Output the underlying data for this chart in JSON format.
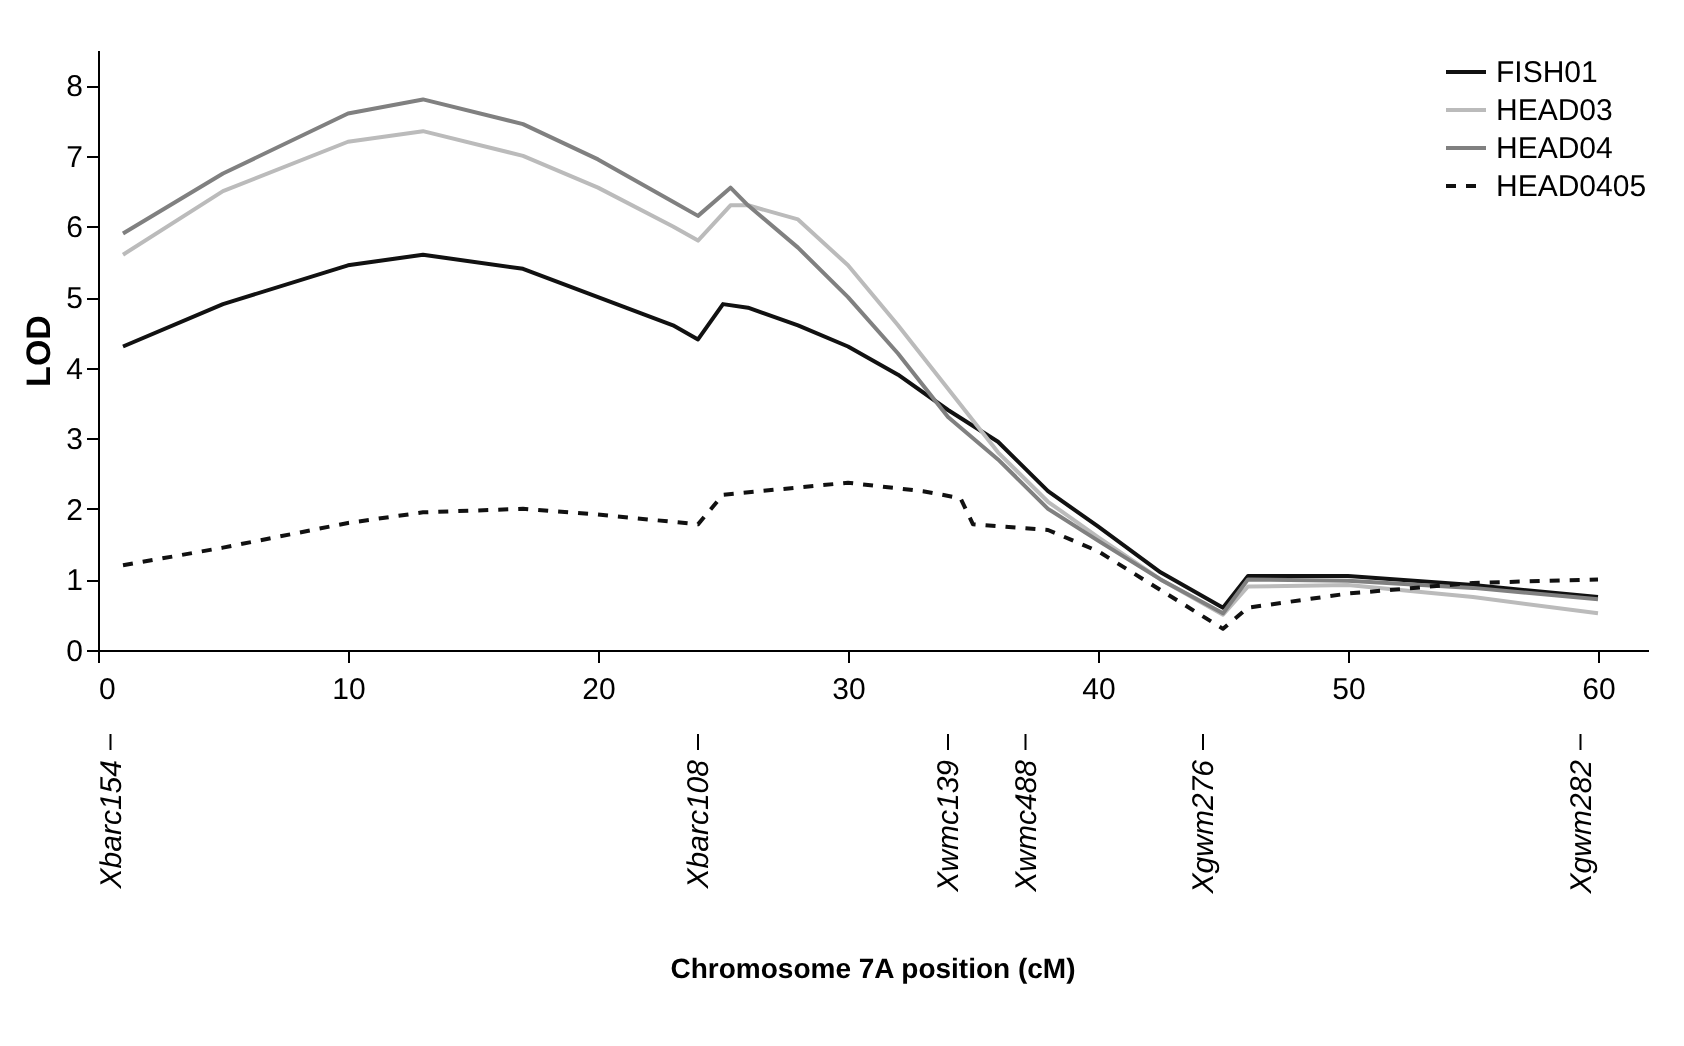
{
  "chart_data": {
    "type": "line",
    "annotations": [
      "Chromosome 7A position (cM)"
    ],
    "ylabel": "LOD",
    "xlim": [
      0,
      62
    ],
    "xticks": [
      0,
      10,
      20,
      30,
      40,
      50,
      60
    ],
    "ylim": [
      0,
      8.5
    ],
    "yticks": [
      0,
      1,
      2,
      3,
      4,
      5,
      6,
      7,
      8
    ],
    "grid": false,
    "legend": "top right",
    "marker": "none",
    "series": [
      {
        "name": "FISH01",
        "color": "#111111",
        "line_style": "solid",
        "x": [
          1,
          5,
          10,
          13,
          17,
          20,
          23,
          24,
          25,
          26,
          28,
          30,
          32,
          34,
          36,
          38,
          40,
          42.5,
          45,
          46,
          50,
          55,
          60
        ],
        "values": [
          4.3,
          4.9,
          5.45,
          5.6,
          5.4,
          5.0,
          4.6,
          4.4,
          4.9,
          4.85,
          4.6,
          4.3,
          3.9,
          3.4,
          2.95,
          2.25,
          1.75,
          1.1,
          0.6,
          1.05,
          1.05,
          0.92,
          0.75
        ]
      },
      {
        "name": "HEAD03",
        "color": "#bbbbbb",
        "line_style": "solid",
        "x": [
          1,
          5,
          10,
          13,
          17,
          20,
          23,
          24,
          25.3,
          26,
          28,
          30,
          32,
          34,
          36,
          38,
          40,
          42.5,
          45,
          46,
          50,
          55,
          60
        ],
        "values": [
          5.6,
          6.5,
          7.2,
          7.35,
          7.0,
          6.55,
          6.0,
          5.8,
          6.3,
          6.3,
          6.1,
          5.45,
          4.6,
          3.7,
          2.8,
          2.1,
          1.6,
          1.0,
          0.5,
          0.9,
          0.92,
          0.75,
          0.52
        ]
      },
      {
        "name": "HEAD04",
        "color": "#808080",
        "line_style": "solid",
        "x": [
          1,
          5,
          10,
          13,
          17,
          20,
          23,
          24,
          25.3,
          26,
          28,
          30,
          32,
          34,
          36,
          38,
          40,
          42.5,
          45,
          46,
          50,
          55,
          60
        ],
        "values": [
          5.9,
          6.75,
          7.6,
          7.8,
          7.45,
          6.95,
          6.35,
          6.15,
          6.55,
          6.3,
          5.7,
          5.0,
          4.2,
          3.3,
          2.7,
          2.0,
          1.55,
          1.0,
          0.52,
          1.0,
          0.98,
          0.88,
          0.72
        ]
      },
      {
        "name": "HEAD0405",
        "color": "#111111",
        "line_style": "dashed",
        "x": [
          1,
          5,
          10,
          13,
          17,
          20,
          24,
          25,
          30,
          33,
          34.5,
          35,
          38,
          40,
          42.5,
          45,
          46,
          50,
          55,
          60
        ],
        "values": [
          1.2,
          1.45,
          1.8,
          1.95,
          2.0,
          1.92,
          1.78,
          2.2,
          2.37,
          2.25,
          2.15,
          1.78,
          1.7,
          1.4,
          0.85,
          0.3,
          0.6,
          0.8,
          0.95,
          1.0
        ]
      }
    ],
    "ref_lines": [
      {
        "axis": "x",
        "value": 0.5,
        "label": "Xbarc154"
      },
      {
        "axis": "x",
        "value": 24,
        "label": "Xbarc108"
      },
      {
        "axis": "x",
        "value": 34,
        "label": "Xwmc139"
      },
      {
        "axis": "x",
        "value": 37.1,
        "label": "Xwmc488"
      },
      {
        "axis": "x",
        "value": 44.2,
        "label": "Xgwm276"
      },
      {
        "axis": "x",
        "value": 59.3,
        "label": "Xgwm282"
      }
    ]
  }
}
